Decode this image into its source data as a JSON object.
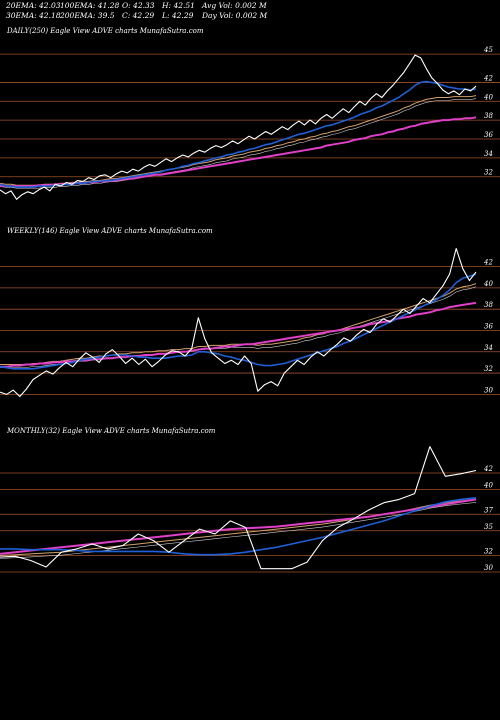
{
  "header": {
    "row1": [
      "20EMA: 42.03",
      "100EMA: 41.28",
      "O: 42.33",
      "H: 42.51",
      "Avg Vol: 0.002  M"
    ],
    "row2": [
      "30EMA: 42.18",
      "200EMA: 39.5",
      "C: 42.29",
      "L: 42.29",
      "Day Vol: 0.002  M"
    ]
  },
  "colors": {
    "background": "#000000",
    "price": "#ffffff",
    "gridline": "#a0522d",
    "ema_short": "#1f5fd8",
    "ema_long": "#e040c8",
    "ema_mid": "#d2a06a"
  },
  "chart_data": [
    {
      "type": "line",
      "title": "DAILY(250) Eagle  View  ADVE charts MunafaSutra.com",
      "yticks": [
        45,
        42,
        40,
        38,
        36,
        34,
        32
      ],
      "ylim": [
        29,
        46.5
      ],
      "grid": true,
      "series": [
        {
          "values": [
            30.6,
            30.2,
            30.5,
            29.6,
            30.1,
            30.4,
            30.2,
            30.6,
            30.9,
            30.5,
            31.2,
            31.0,
            31.4,
            31.2,
            31.6,
            31.5,
            31.9,
            31.7,
            32.1,
            32.2,
            31.9,
            32.3,
            32.6,
            32.4,
            32.8,
            32.6,
            33.0,
            33.3,
            33.1,
            33.5,
            33.9,
            33.6,
            34.0,
            34.3,
            34.1,
            34.5,
            34.8,
            34.6,
            35.0,
            35.3,
            35.1,
            35.4,
            35.8,
            35.5,
            35.9,
            36.3,
            36.0,
            36.4,
            36.8,
            36.5,
            36.9,
            37.3,
            37.0,
            37.5,
            37.9,
            37.5,
            38.0,
            37.6,
            38.2,
            38.6,
            38.2,
            38.7,
            39.2,
            38.8,
            39.4,
            40.0,
            39.6,
            40.3,
            40.8,
            40.4,
            41.1,
            41.7,
            42.4,
            43.1,
            44.0,
            44.9,
            44.6,
            43.5,
            42.5,
            41.9,
            41.2,
            40.8,
            41.1,
            40.7,
            41.3,
            41.1,
            41.6
          ]
        },
        {
          "values": [
            31.2,
            31.0,
            31.0,
            30.9,
            30.9,
            30.9,
            30.9,
            31.0,
            31.0,
            31.0,
            31.1,
            31.1,
            31.2,
            31.2,
            31.3,
            31.3,
            31.4,
            31.5,
            31.5,
            31.6,
            31.6,
            31.7,
            31.8,
            31.9,
            32.0,
            32.1,
            32.2,
            32.3,
            32.4,
            32.5,
            32.7,
            32.8,
            32.9,
            33.1,
            33.2,
            33.4,
            33.5,
            33.7,
            33.8,
            34.0,
            34.1,
            34.3,
            34.4,
            34.6,
            34.7,
            34.9,
            35.0,
            35.2,
            35.4,
            35.5,
            35.7,
            35.9,
            36.1,
            36.3,
            36.5,
            36.6,
            36.8,
            37.0,
            37.2,
            37.4,
            37.5,
            37.7,
            37.9,
            38.1,
            38.3,
            38.6,
            38.8,
            39.0,
            39.3,
            39.5,
            39.8,
            40.1,
            40.4,
            40.8,
            41.2,
            41.7,
            42.0,
            42.1,
            42.0,
            41.9,
            41.7,
            41.5,
            41.4,
            41.3,
            41.3,
            41.2,
            41.3
          ]
        },
        {
          "values": [
            31.0,
            31.0,
            31.0,
            31.0,
            31.0,
            31.0,
            31.0,
            31.1,
            31.1,
            31.1,
            31.2,
            31.2,
            31.2,
            31.3,
            31.3,
            31.3,
            31.4,
            31.4,
            31.5,
            31.5,
            31.6,
            31.6,
            31.7,
            31.8,
            31.8,
            31.9,
            32.0,
            32.1,
            32.2,
            32.2,
            32.3,
            32.4,
            32.5,
            32.6,
            32.7,
            32.8,
            32.9,
            33.0,
            33.1,
            33.2,
            33.3,
            33.4,
            33.5,
            33.6,
            33.7,
            33.8,
            33.9,
            34.0,
            34.1,
            34.2,
            34.3,
            34.4,
            34.5,
            34.6,
            34.7,
            34.8,
            34.9,
            35.0,
            35.1,
            35.3,
            35.4,
            35.5,
            35.6,
            35.7,
            35.9,
            36.0,
            36.1,
            36.3,
            36.4,
            36.5,
            36.7,
            36.8,
            37.0,
            37.1,
            37.3,
            37.4,
            37.6,
            37.7,
            37.8,
            37.9,
            38.0,
            38.0,
            38.1,
            38.1,
            38.2,
            38.2,
            38.3
          ]
        },
        {
          "values": [
            31.3,
            31.2,
            31.2,
            31.1,
            31.1,
            31.1,
            31.1,
            31.1,
            31.2,
            31.2,
            31.2,
            31.3,
            31.3,
            31.4,
            31.4,
            31.5,
            31.5,
            31.6,
            31.6,
            31.7,
            31.8,
            31.8,
            31.9,
            32.0,
            32.1,
            32.2,
            32.3,
            32.4,
            32.5,
            32.6,
            32.7,
            32.8,
            32.9,
            33.0,
            33.1,
            33.3,
            33.4,
            33.5,
            33.6,
            33.8,
            33.9,
            34.0,
            34.2,
            34.3,
            34.4,
            34.6,
            34.7,
            34.8,
            35.0,
            35.1,
            35.3,
            35.4,
            35.6,
            35.7,
            35.9,
            36.0,
            36.2,
            36.3,
            36.5,
            36.6,
            36.8,
            36.9,
            37.1,
            37.3,
            37.4,
            37.6,
            37.8,
            38.0,
            38.2,
            38.4,
            38.6,
            38.8,
            39.0,
            39.3,
            39.5,
            39.8,
            40.0,
            40.2,
            40.3,
            40.4,
            40.4,
            40.4,
            40.5,
            40.5,
            40.5,
            40.5,
            40.6
          ]
        }
      ]
    },
    {
      "type": "line",
      "title": "WEEKLY(146) Eagle  View  ADVE charts MunafaSutra.com",
      "yticks": [
        42,
        40,
        38,
        36,
        34,
        32,
        30
      ],
      "ylim": [
        29,
        44.5
      ],
      "grid": true,
      "series": [
        {
          "values": [
            30.2,
            30.0,
            30.4,
            29.8,
            30.5,
            31.4,
            31.8,
            32.2,
            31.9,
            32.5,
            33.0,
            32.6,
            33.3,
            33.9,
            33.5,
            33.0,
            33.8,
            34.2,
            33.6,
            32.9,
            33.4,
            32.8,
            33.3,
            32.6,
            33.1,
            33.7,
            34.1,
            34.0,
            33.6,
            34.3,
            37.2,
            35.2,
            33.9,
            33.4,
            32.9,
            33.2,
            32.8,
            33.6,
            32.9,
            30.3,
            30.9,
            31.2,
            30.8,
            32.0,
            32.6,
            33.2,
            32.8,
            33.5,
            34.0,
            33.6,
            34.2,
            34.7,
            35.3,
            35.0,
            35.6,
            36.1,
            35.8,
            36.6,
            37.1,
            36.8,
            37.4,
            38.0,
            37.6,
            38.3,
            39.0,
            38.6,
            39.4,
            40.2,
            41.3,
            43.7,
            41.8,
            40.7,
            41.5
          ]
        },
        {
          "values": [
            32.6,
            32.5,
            32.4,
            32.4,
            32.4,
            32.4,
            32.5,
            32.6,
            32.7,
            32.8,
            32.9,
            33.0,
            33.2,
            33.3,
            33.4,
            33.5,
            33.6,
            33.7,
            33.7,
            33.7,
            33.6,
            33.5,
            33.5,
            33.4,
            33.4,
            33.4,
            33.5,
            33.6,
            33.6,
            33.7,
            34.0,
            34.0,
            33.9,
            33.8,
            33.6,
            33.5,
            33.3,
            33.2,
            33.0,
            32.8,
            32.7,
            32.7,
            32.8,
            32.9,
            33.1,
            33.3,
            33.5,
            33.7,
            33.9,
            34.1,
            34.3,
            34.5,
            34.8,
            35.0,
            35.3,
            35.6,
            35.9,
            36.2,
            36.5,
            36.8,
            37.1,
            37.4,
            37.7,
            38.0,
            38.3,
            38.6,
            38.9,
            39.3,
            39.8,
            40.5,
            40.9,
            41.1,
            41.3
          ]
        },
        {
          "values": [
            32.6,
            32.6,
            32.7,
            32.7,
            32.8,
            32.8,
            32.9,
            32.9,
            33.0,
            33.0,
            33.1,
            33.1,
            33.2,
            33.2,
            33.3,
            33.3,
            33.4,
            33.4,
            33.5,
            33.5,
            33.6,
            33.6,
            33.7,
            33.7,
            33.8,
            33.8,
            33.9,
            34.0,
            34.0,
            34.1,
            34.2,
            34.3,
            34.3,
            34.4,
            34.5,
            34.5,
            34.6,
            34.7,
            34.7,
            34.8,
            34.9,
            35.0,
            35.1,
            35.2,
            35.3,
            35.4,
            35.5,
            35.6,
            35.7,
            35.8,
            35.9,
            36.0,
            36.1,
            36.2,
            36.3,
            36.4,
            36.6,
            36.7,
            36.8,
            36.9,
            37.1,
            37.2,
            37.3,
            37.5,
            37.6,
            37.7,
            37.9,
            38.0,
            38.2,
            38.3,
            38.4,
            38.5,
            38.6
          ]
        },
        {
          "values": [
            32.8,
            32.8,
            32.8,
            32.8,
            32.8,
            32.9,
            32.9,
            33.0,
            33.1,
            33.1,
            33.2,
            33.3,
            33.4,
            33.4,
            33.5,
            33.6,
            33.6,
            33.7,
            33.8,
            33.8,
            33.9,
            33.9,
            34.0,
            34.0,
            34.1,
            34.1,
            34.2,
            34.2,
            34.3,
            34.3,
            34.5,
            34.5,
            34.6,
            34.6,
            34.6,
            34.7,
            34.7,
            34.7,
            34.7,
            34.6,
            34.7,
            34.7,
            34.8,
            34.9,
            35.0,
            35.1,
            35.3,
            35.4,
            35.6,
            35.7,
            35.9,
            36.0,
            36.2,
            36.4,
            36.6,
            36.8,
            37.0,
            37.2,
            37.4,
            37.6,
            37.8,
            38.0,
            38.2,
            38.4,
            38.6,
            38.8,
            39.0,
            39.2,
            39.5,
            39.9,
            40.1,
            40.2,
            40.4
          ]
        }
      ]
    },
    {
      "type": "line",
      "title": "MONTHLY(32) Eagle  View  ADVE charts MunafaSutra.com",
      "yticks": [
        42,
        40,
        37,
        35,
        32,
        30
      ],
      "ylim": [
        26,
        46
      ],
      "grid": true,
      "series": [
        {
          "values": [
            31.8,
            31.9,
            31.4,
            30.6,
            32.4,
            32.8,
            33.4,
            32.8,
            33.2,
            34.6,
            33.8,
            32.4,
            33.8,
            35.2,
            34.6,
            36.2,
            35.4,
            30.4,
            30.4,
            30.4,
            31.2,
            33.8,
            35.4,
            36.4,
            37.5,
            38.4,
            38.8,
            39.5,
            45.2,
            41.6,
            41.9,
            42.3
          ]
        },
        {
          "values": [
            32.8,
            32.8,
            32.7,
            32.7,
            32.7,
            32.6,
            32.5,
            32.5,
            32.5,
            32.5,
            32.5,
            32.4,
            32.2,
            32.1,
            32.1,
            32.2,
            32.4,
            32.7,
            33.0,
            33.4,
            33.8,
            34.2,
            34.7,
            35.2,
            35.7,
            36.2,
            36.8,
            37.4,
            38.0,
            38.5,
            38.8,
            39.0
          ]
        },
        {
          "values": [
            32.2,
            32.4,
            32.6,
            32.8,
            33.0,
            33.2,
            33.4,
            33.6,
            33.8,
            34.0,
            34.2,
            34.4,
            34.6,
            34.8,
            35.0,
            35.2,
            35.3,
            35.4,
            35.5,
            35.7,
            35.9,
            36.1,
            36.3,
            36.5,
            36.7,
            37.0,
            37.3,
            37.6,
            37.9,
            38.2,
            38.5,
            38.8
          ]
        },
        {
          "values": [
            32.0,
            32.1,
            32.2,
            32.3,
            32.4,
            32.6,
            32.8,
            33.0,
            33.2,
            33.4,
            33.6,
            33.8,
            34.0,
            34.2,
            34.4,
            34.6,
            34.8,
            35.0,
            35.2,
            35.4,
            35.6,
            35.8,
            36.1,
            36.4,
            36.7,
            37.0,
            37.3,
            37.7,
            38.1,
            38.4,
            38.6,
            38.8
          ]
        }
      ]
    }
  ]
}
